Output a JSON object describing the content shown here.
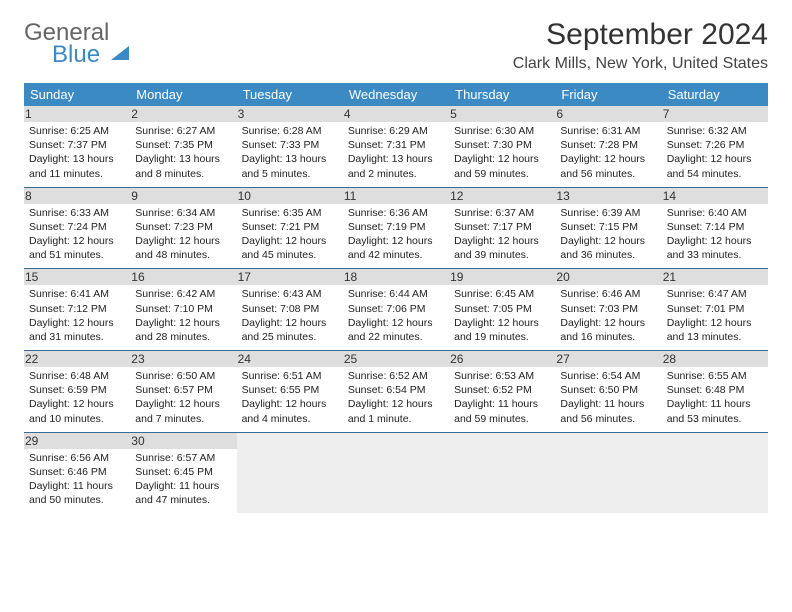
{
  "logo": {
    "line1": "General",
    "line2": "Blue"
  },
  "title": "September 2024",
  "subtitle": "Clark Mills, New York, United States",
  "colors": {
    "header_bg": "#3b8ac4",
    "header_text": "#ffffff",
    "daynum_bg": "#dedede",
    "week_border": "#3b6b94",
    "empty_bg": "#eeeeee",
    "body_text": "#222222",
    "title_text": "#333333"
  },
  "dayHeaders": [
    "Sunday",
    "Monday",
    "Tuesday",
    "Wednesday",
    "Thursday",
    "Friday",
    "Saturday"
  ],
  "weeks": [
    [
      {
        "n": "1",
        "sr": "Sunrise: 6:25 AM",
        "ss": "Sunset: 7:37 PM",
        "d1": "Daylight: 13 hours",
        "d2": "and 11 minutes."
      },
      {
        "n": "2",
        "sr": "Sunrise: 6:27 AM",
        "ss": "Sunset: 7:35 PM",
        "d1": "Daylight: 13 hours",
        "d2": "and 8 minutes."
      },
      {
        "n": "3",
        "sr": "Sunrise: 6:28 AM",
        "ss": "Sunset: 7:33 PM",
        "d1": "Daylight: 13 hours",
        "d2": "and 5 minutes."
      },
      {
        "n": "4",
        "sr": "Sunrise: 6:29 AM",
        "ss": "Sunset: 7:31 PM",
        "d1": "Daylight: 13 hours",
        "d2": "and 2 minutes."
      },
      {
        "n": "5",
        "sr": "Sunrise: 6:30 AM",
        "ss": "Sunset: 7:30 PM",
        "d1": "Daylight: 12 hours",
        "d2": "and 59 minutes."
      },
      {
        "n": "6",
        "sr": "Sunrise: 6:31 AM",
        "ss": "Sunset: 7:28 PM",
        "d1": "Daylight: 12 hours",
        "d2": "and 56 minutes."
      },
      {
        "n": "7",
        "sr": "Sunrise: 6:32 AM",
        "ss": "Sunset: 7:26 PM",
        "d1": "Daylight: 12 hours",
        "d2": "and 54 minutes."
      }
    ],
    [
      {
        "n": "8",
        "sr": "Sunrise: 6:33 AM",
        "ss": "Sunset: 7:24 PM",
        "d1": "Daylight: 12 hours",
        "d2": "and 51 minutes."
      },
      {
        "n": "9",
        "sr": "Sunrise: 6:34 AM",
        "ss": "Sunset: 7:23 PM",
        "d1": "Daylight: 12 hours",
        "d2": "and 48 minutes."
      },
      {
        "n": "10",
        "sr": "Sunrise: 6:35 AM",
        "ss": "Sunset: 7:21 PM",
        "d1": "Daylight: 12 hours",
        "d2": "and 45 minutes."
      },
      {
        "n": "11",
        "sr": "Sunrise: 6:36 AM",
        "ss": "Sunset: 7:19 PM",
        "d1": "Daylight: 12 hours",
        "d2": "and 42 minutes."
      },
      {
        "n": "12",
        "sr": "Sunrise: 6:37 AM",
        "ss": "Sunset: 7:17 PM",
        "d1": "Daylight: 12 hours",
        "d2": "and 39 minutes."
      },
      {
        "n": "13",
        "sr": "Sunrise: 6:39 AM",
        "ss": "Sunset: 7:15 PM",
        "d1": "Daylight: 12 hours",
        "d2": "and 36 minutes."
      },
      {
        "n": "14",
        "sr": "Sunrise: 6:40 AM",
        "ss": "Sunset: 7:14 PM",
        "d1": "Daylight: 12 hours",
        "d2": "and 33 minutes."
      }
    ],
    [
      {
        "n": "15",
        "sr": "Sunrise: 6:41 AM",
        "ss": "Sunset: 7:12 PM",
        "d1": "Daylight: 12 hours",
        "d2": "and 31 minutes."
      },
      {
        "n": "16",
        "sr": "Sunrise: 6:42 AM",
        "ss": "Sunset: 7:10 PM",
        "d1": "Daylight: 12 hours",
        "d2": "and 28 minutes."
      },
      {
        "n": "17",
        "sr": "Sunrise: 6:43 AM",
        "ss": "Sunset: 7:08 PM",
        "d1": "Daylight: 12 hours",
        "d2": "and 25 minutes."
      },
      {
        "n": "18",
        "sr": "Sunrise: 6:44 AM",
        "ss": "Sunset: 7:06 PM",
        "d1": "Daylight: 12 hours",
        "d2": "and 22 minutes."
      },
      {
        "n": "19",
        "sr": "Sunrise: 6:45 AM",
        "ss": "Sunset: 7:05 PM",
        "d1": "Daylight: 12 hours",
        "d2": "and 19 minutes."
      },
      {
        "n": "20",
        "sr": "Sunrise: 6:46 AM",
        "ss": "Sunset: 7:03 PM",
        "d1": "Daylight: 12 hours",
        "d2": "and 16 minutes."
      },
      {
        "n": "21",
        "sr": "Sunrise: 6:47 AM",
        "ss": "Sunset: 7:01 PM",
        "d1": "Daylight: 12 hours",
        "d2": "and 13 minutes."
      }
    ],
    [
      {
        "n": "22",
        "sr": "Sunrise: 6:48 AM",
        "ss": "Sunset: 6:59 PM",
        "d1": "Daylight: 12 hours",
        "d2": "and 10 minutes."
      },
      {
        "n": "23",
        "sr": "Sunrise: 6:50 AM",
        "ss": "Sunset: 6:57 PM",
        "d1": "Daylight: 12 hours",
        "d2": "and 7 minutes."
      },
      {
        "n": "24",
        "sr": "Sunrise: 6:51 AM",
        "ss": "Sunset: 6:55 PM",
        "d1": "Daylight: 12 hours",
        "d2": "and 4 minutes."
      },
      {
        "n": "25",
        "sr": "Sunrise: 6:52 AM",
        "ss": "Sunset: 6:54 PM",
        "d1": "Daylight: 12 hours",
        "d2": "and 1 minute."
      },
      {
        "n": "26",
        "sr": "Sunrise: 6:53 AM",
        "ss": "Sunset: 6:52 PM",
        "d1": "Daylight: 11 hours",
        "d2": "and 59 minutes."
      },
      {
        "n": "27",
        "sr": "Sunrise: 6:54 AM",
        "ss": "Sunset: 6:50 PM",
        "d1": "Daylight: 11 hours",
        "d2": "and 56 minutes."
      },
      {
        "n": "28",
        "sr": "Sunrise: 6:55 AM",
        "ss": "Sunset: 6:48 PM",
        "d1": "Daylight: 11 hours",
        "d2": "and 53 minutes."
      }
    ],
    [
      {
        "n": "29",
        "sr": "Sunrise: 6:56 AM",
        "ss": "Sunset: 6:46 PM",
        "d1": "Daylight: 11 hours",
        "d2": "and 50 minutes."
      },
      {
        "n": "30",
        "sr": "Sunrise: 6:57 AM",
        "ss": "Sunset: 6:45 PM",
        "d1": "Daylight: 11 hours",
        "d2": "and 47 minutes."
      },
      null,
      null,
      null,
      null,
      null
    ]
  ]
}
